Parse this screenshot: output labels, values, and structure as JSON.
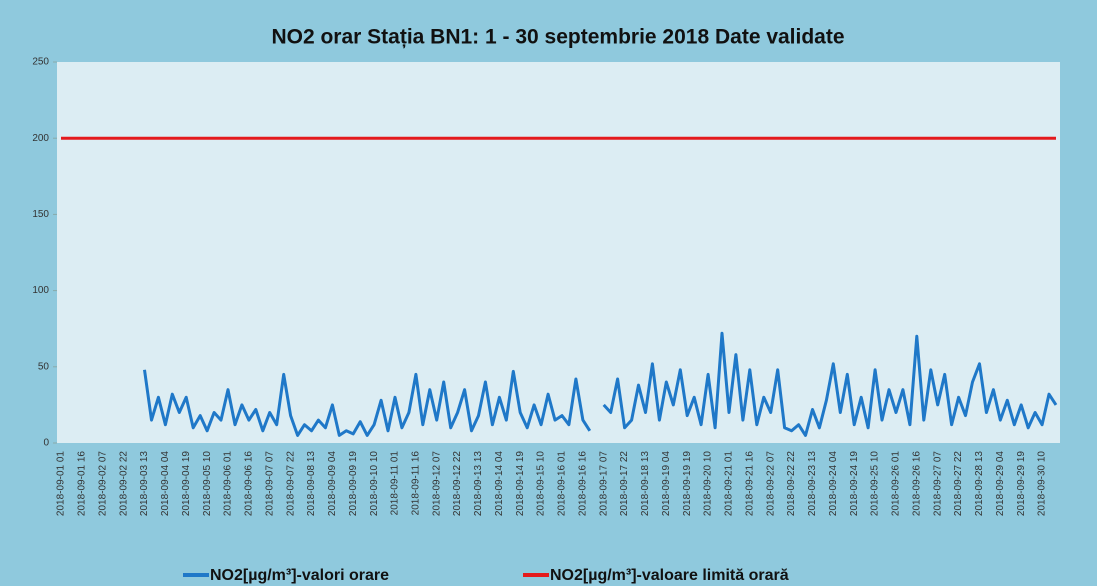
{
  "chart_data": {
    "type": "line",
    "title": "NO2 orar Stația BN1: 1 - 30 septembrie 2018 Date validate",
    "categories": [
      "2018-09-01 01",
      null,
      null,
      "2018-09-01 16",
      null,
      null,
      "2018-09-02 07",
      null,
      null,
      "2018-09-02 22",
      null,
      null,
      "2018-09-03 13",
      null,
      null,
      "2018-09-04 04",
      null,
      null,
      "2018-09-04 19",
      null,
      null,
      "2018-09-05 10",
      null,
      null,
      "2018-09-06 01",
      null,
      null,
      "2018-09-06 16",
      null,
      null,
      "2018-09-07 07",
      null,
      null,
      "2018-09-07 22",
      null,
      null,
      "2018-09-08 13",
      null,
      null,
      "2018-09-09 04",
      null,
      null,
      "2018-09-09 19",
      null,
      null,
      "2018-09-10 10",
      null,
      null,
      "2018-09-11 01",
      null,
      null,
      "2018-09-11 16",
      null,
      null,
      "2018-09-12 07",
      null,
      null,
      "2018-09-12 22",
      null,
      null,
      "2018-09-13 13",
      null,
      null,
      "2018-09-14 04",
      null,
      null,
      "2018-09-14 19",
      null,
      null,
      "2018-09-15 10",
      null,
      null,
      "2018-09-16 01",
      null,
      null,
      "2018-09-16 16",
      null,
      null,
      "2018-09-17 07",
      null,
      null,
      "2018-09-17 22",
      null,
      null,
      "2018-09-18 13",
      null,
      null,
      "2018-09-19 04",
      null,
      null,
      "2018-09-19 19",
      null,
      null,
      "2018-09-20 10",
      null,
      null,
      "2018-09-21 01",
      null,
      null,
      "2018-09-21 16",
      null,
      null,
      "2018-09-22 07",
      null,
      null,
      "2018-09-22 22",
      null,
      null,
      "2018-09-23 13",
      null,
      null,
      "2018-09-24 04",
      null,
      null,
      "2018-09-24 19",
      null,
      null,
      "2018-09-25 10",
      null,
      null,
      "2018-09-26 01",
      null,
      null,
      "2018-09-26 16",
      null,
      null,
      "2018-09-27 07",
      null,
      null,
      "2018-09-27 22",
      null,
      null,
      "2018-09-28 13",
      null,
      null,
      "2018-09-29 04",
      null,
      null,
      "2018-09-29 19",
      null,
      null,
      "2018-09-30 10",
      null,
      null
    ],
    "series": [
      {
        "name": "NO2[µg/m³]-valori orare",
        "color": "#1f78c8",
        "values": [
          null,
          null,
          null,
          null,
          null,
          null,
          null,
          null,
          null,
          null,
          null,
          null,
          48,
          15,
          30,
          12,
          32,
          20,
          30,
          10,
          18,
          8,
          20,
          15,
          35,
          12,
          25,
          15,
          22,
          8,
          20,
          12,
          45,
          18,
          5,
          12,
          8,
          15,
          10,
          25,
          5,
          8,
          6,
          14,
          5,
          12,
          28,
          8,
          30,
          10,
          20,
          45,
          12,
          35,
          15,
          40,
          10,
          20,
          35,
          8,
          18,
          40,
          12,
          30,
          15,
          47,
          20,
          10,
          25,
          12,
          32,
          15,
          18,
          12,
          42,
          15,
          8,
          null,
          25,
          20,
          42,
          10,
          15,
          38,
          20,
          52,
          15,
          40,
          25,
          48,
          18,
          30,
          12,
          45,
          10,
          72,
          20,
          58,
          15,
          48,
          12,
          30,
          20,
          48,
          10,
          8,
          12,
          5,
          22,
          10,
          28,
          52,
          20,
          45,
          12,
          30,
          10,
          48,
          15,
          35,
          20,
          35,
          12,
          70,
          15,
          48,
          25,
          45,
          12,
          30,
          18,
          40,
          52,
          20,
          35,
          15,
          28,
          12,
          25,
          10,
          20,
          12,
          32,
          25
        ]
      },
      {
        "name": "NO2[µg/m³]-valoare limită orară",
        "color": "#e41a1c",
        "values": [
          200,
          200,
          200,
          200,
          200,
          200,
          200,
          200,
          200,
          200,
          200,
          200,
          200,
          200,
          200,
          200,
          200,
          200,
          200,
          200,
          200,
          200,
          200,
          200,
          200,
          200,
          200,
          200,
          200,
          200,
          200,
          200,
          200,
          200,
          200,
          200,
          200,
          200,
          200,
          200,
          200,
          200,
          200,
          200,
          200,
          200,
          200,
          200,
          200,
          200,
          200,
          200,
          200,
          200,
          200,
          200,
          200,
          200,
          200,
          200,
          200,
          200,
          200,
          200,
          200,
          200,
          200,
          200,
          200,
          200,
          200,
          200,
          200,
          200,
          200,
          200,
          200,
          200,
          200,
          200,
          200,
          200,
          200,
          200,
          200,
          200,
          200,
          200,
          200,
          200,
          200,
          200,
          200,
          200,
          200,
          200,
          200,
          200,
          200,
          200,
          200,
          200,
          200,
          200,
          200,
          200,
          200,
          200,
          200,
          200,
          200,
          200,
          200,
          200,
          200,
          200,
          200,
          200,
          200,
          200,
          200,
          200,
          200,
          200,
          200,
          200,
          200,
          200,
          200,
          200,
          200,
          200,
          200,
          200,
          200,
          200,
          200,
          200,
          200,
          200,
          200,
          200,
          200,
          200
        ]
      }
    ],
    "ylim": [
      0,
      250
    ],
    "yticks": [
      0,
      50,
      100,
      150,
      200,
      250
    ],
    "grid": false
  }
}
